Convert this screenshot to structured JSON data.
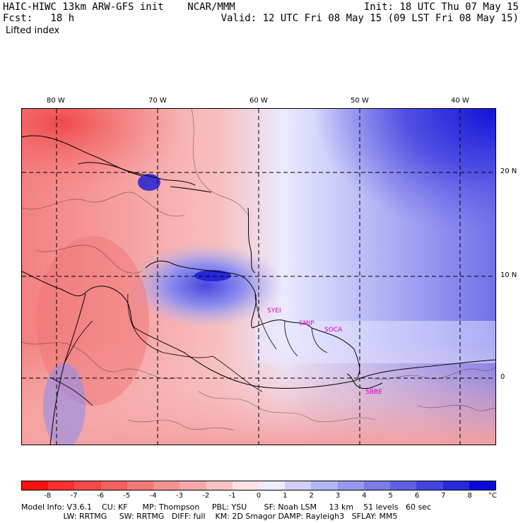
{
  "header": {
    "left_line1": "HAIC-HIWC 13km ARW-GFS init    NCAR/MMM",
    "left_line2": "Fcst:   18 h",
    "field_name": "Lifted index",
    "right_line1": "Init: 18 UTC Thu 07 May 15",
    "right_line2": "Valid: 12 UTC Fri 08 May 15 (09 LST Fri 08 May 15)"
  },
  "map": {
    "lon_labels": [
      "80 W",
      "70 W",
      "60 W",
      "50 W",
      "40 W"
    ],
    "lat_labels": [
      "20 N",
      "10 N",
      "0"
    ],
    "stations": [
      "SYEI",
      "SMJP",
      "SOCA",
      "SBBE"
    ]
  },
  "colorbar": {
    "ticks": [
      "-8",
      "-7",
      "-6",
      "-5",
      "-4",
      "-3",
      "-2",
      "-1",
      "0",
      "1",
      "2",
      "3",
      "4",
      "5",
      "6",
      "7",
      "8"
    ],
    "unit": "°C",
    "colors": [
      "#ff1010",
      "#ff3030",
      "#f84848",
      "#f46060",
      "#f27878",
      "#f49090",
      "#f6a8a8",
      "#f8c4c4",
      "#fde2e2",
      "#ececff",
      "#d0d0fa",
      "#b4b6f6",
      "#9898f0",
      "#7c7ce8",
      "#6060e4",
      "#4444e0",
      "#2828dc",
      "#0a0ad8"
    ]
  },
  "footer": {
    "line1": "Model Info: V3.6.1    CU: KF      MP: Thompson     PBL: YSU       SF: Noah LSM     13 km    51 levels   60 sec",
    "line2": "                 LW: RRTMG     SW: RRTMG   DIFF: full    KM: 2D Smagor DAMP: Rayleigh3   SFLAY: MM5"
  }
}
